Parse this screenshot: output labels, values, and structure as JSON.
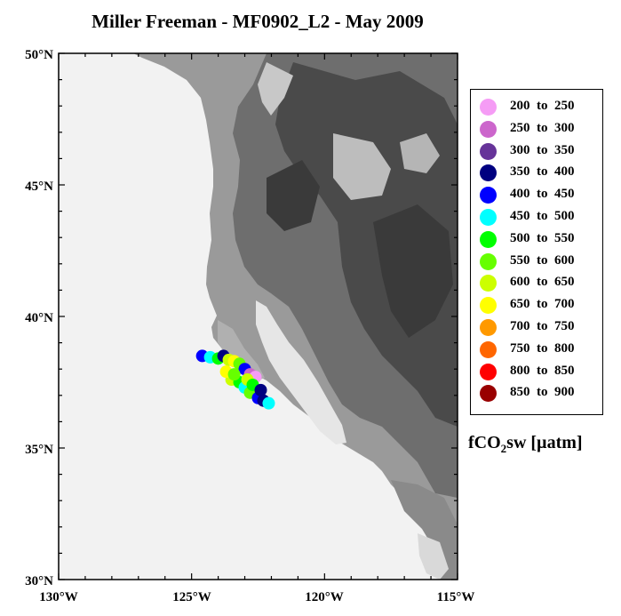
{
  "title": "Miller Freeman - MF0902_L2 - May 2009",
  "axes": {
    "x_ticks": [
      "130°W",
      "125°W",
      "120°W",
      "115°W"
    ],
    "y_ticks": [
      "50°N",
      "45°N",
      "40°N",
      "35°N",
      "30°N"
    ],
    "lon_range": [
      -130,
      -115
    ],
    "lat_range": [
      30,
      50
    ]
  },
  "legend": {
    "items": [
      {
        "label": "200  to  250",
        "color": "#f59cf5"
      },
      {
        "label": "250  to  300",
        "color": "#cc66cc"
      },
      {
        "label": "300  to  350",
        "color": "#663399"
      },
      {
        "label": "350  to  400",
        "color": "#000080"
      },
      {
        "label": "400  to  450",
        "color": "#0000ff"
      },
      {
        "label": "450  to  500",
        "color": "#00ffff"
      },
      {
        "label": "500  to  550",
        "color": "#00ff00"
      },
      {
        "label": "550  to  600",
        "color": "#66ff00"
      },
      {
        "label": "600  to  650",
        "color": "#ccff00"
      },
      {
        "label": "650  to  700",
        "color": "#ffff00"
      },
      {
        "label": "700  to  750",
        "color": "#ff9900"
      },
      {
        "label": "750  to  800",
        "color": "#ff6600"
      },
      {
        "label": "800  to  850",
        "color": "#ff0000"
      },
      {
        "label": "850  to  900",
        "color": "#990000"
      }
    ],
    "units_main": "fCO",
    "units_sub": "2",
    "units_tail": "sw [µatm]"
  },
  "track": [
    {
      "lon": -124.6,
      "lat": 38.5,
      "c": "#0000ff"
    },
    {
      "lon": -124.3,
      "lat": 38.45,
      "c": "#00ffff"
    },
    {
      "lon": -124.0,
      "lat": 38.4,
      "c": "#00ff00"
    },
    {
      "lon": -123.8,
      "lat": 38.5,
      "c": "#000080"
    },
    {
      "lon": -123.6,
      "lat": 38.35,
      "c": "#ccff00"
    },
    {
      "lon": -123.4,
      "lat": 38.3,
      "c": "#ffff00"
    },
    {
      "lon": -123.2,
      "lat": 38.2,
      "c": "#66ff00"
    },
    {
      "lon": -123.0,
      "lat": 38.0,
      "c": "#0000ff"
    },
    {
      "lon": -122.8,
      "lat": 37.8,
      "c": "#cc66cc"
    },
    {
      "lon": -122.6,
      "lat": 37.7,
      "c": "#f59cf5"
    },
    {
      "lon": -123.5,
      "lat": 37.6,
      "c": "#ccff00"
    },
    {
      "lon": -123.2,
      "lat": 37.5,
      "c": "#00ff00"
    },
    {
      "lon": -123.0,
      "lat": 37.3,
      "c": "#00ffff"
    },
    {
      "lon": -122.8,
      "lat": 37.1,
      "c": "#66ff00"
    },
    {
      "lon": -122.5,
      "lat": 36.9,
      "c": "#0000ff"
    },
    {
      "lon": -122.3,
      "lat": 36.8,
      "c": "#000080"
    },
    {
      "lon": -122.1,
      "lat": 36.7,
      "c": "#00ffff"
    },
    {
      "lon": -123.7,
      "lat": 37.9,
      "c": "#ffff00"
    },
    {
      "lon": -123.4,
      "lat": 37.8,
      "c": "#66ff00"
    },
    {
      "lon": -122.9,
      "lat": 37.6,
      "c": "#ccff00"
    },
    {
      "lon": -122.7,
      "lat": 37.4,
      "c": "#00ff00"
    },
    {
      "lon": -122.4,
      "lat": 37.2,
      "c": "#000080"
    }
  ]
}
